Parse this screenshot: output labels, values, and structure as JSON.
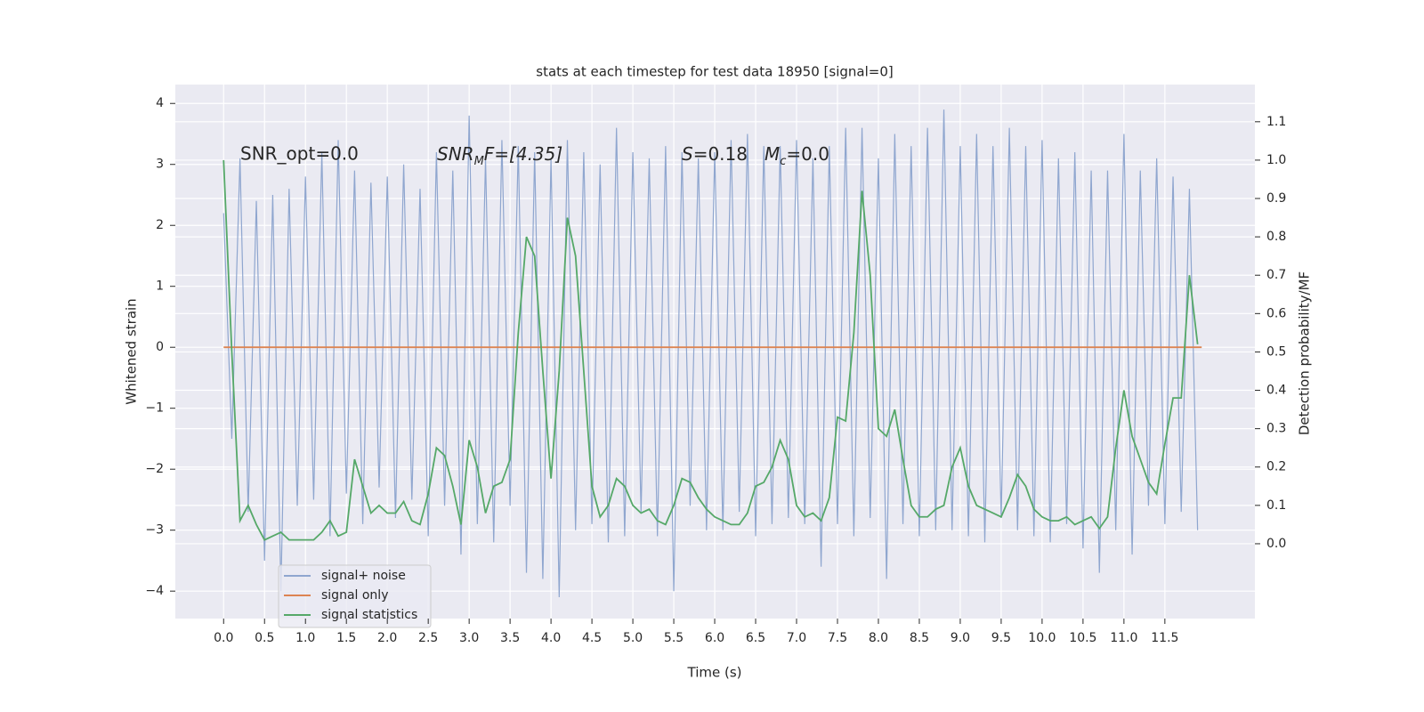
{
  "chart_data": {
    "type": "line",
    "title": "stats at each timestep for test data 18950 [signal=0]",
    "xlabel": "Time (s)",
    "ylabel": "Whitened strain",
    "y2label": "Detection probability/MF",
    "annotations": [
      [
        "SNR_opt=0.0"
      ],
      [
        "SNR",
        "M",
        "F=[4.35]"
      ],
      [
        "S",
        "=0.18"
      ],
      [
        "M",
        "c",
        "=0.0"
      ]
    ],
    "xlim": [
      -0.59,
      12.6
    ],
    "ylim": [
      -4.45,
      4.31
    ],
    "y2lim": [
      -0.195,
      1.197
    ],
    "xticks": [
      {
        "value": 0,
        "label": "0.0"
      },
      0.5,
      {
        "value": 1,
        "label": "1.0"
      },
      1.5,
      {
        "value": 2,
        "label": "2.0"
      },
      2.5,
      {
        "value": 3,
        "label": "3.0"
      },
      3.5,
      {
        "value": 4,
        "label": "4.0"
      },
      4.5,
      {
        "value": 5,
        "label": "5.0"
      },
      5.5,
      {
        "value": 6,
        "label": "6.0"
      },
      6.5,
      {
        "value": 7,
        "label": "7.0"
      },
      7.5,
      {
        "value": 8,
        "label": "8.0"
      },
      8.5,
      {
        "value": 9,
        "label": "9.0"
      },
      9.5,
      {
        "value": 10,
        "label": "10.0"
      },
      10.5,
      {
        "value": 11,
        "label": "11.0"
      },
      11.5
    ],
    "yticks": [
      {
        "value": -4,
        "label": "−4"
      },
      {
        "value": -3,
        "label": "−3"
      },
      {
        "value": -2,
        "label": "−2"
      },
      {
        "value": -1,
        "label": "−1"
      },
      0,
      1,
      2,
      3,
      4
    ],
    "y2ticks": [
      {
        "value": 0,
        "label": "0.0"
      },
      0.1,
      0.2,
      0.3,
      0.4,
      0.5,
      0.6,
      0.7,
      0.8,
      0.9,
      {
        "value": 1,
        "label": "1.0"
      },
      1.1
    ],
    "grid": true,
    "legend": "lower left",
    "series": [
      {
        "name": "signal+ noise",
        "color": "#8fa6cf",
        "x": [
          0,
          0.1,
          0.2,
          0.3,
          0.4,
          0.5,
          0.6,
          0.7,
          0.8,
          0.9,
          1,
          1.1,
          1.2,
          1.3,
          1.4,
          1.5,
          1.6,
          1.7,
          1.8,
          1.9,
          2,
          2.1,
          2.2,
          2.3,
          2.4,
          2.5,
          2.6,
          2.7,
          2.8,
          2.9,
          3,
          3.1,
          3.2,
          3.3,
          3.4,
          3.5,
          3.6,
          3.7,
          3.8,
          3.9,
          4,
          4.1,
          4.2,
          4.3,
          4.4,
          4.5,
          4.6,
          4.7,
          4.8,
          4.9,
          5,
          5.1,
          5.2,
          5.3,
          5.4,
          5.5,
          5.6,
          5.7,
          5.8,
          5.9,
          6,
          6.1,
          6.2,
          6.3,
          6.4,
          6.5,
          6.6,
          6.7,
          6.8,
          6.9,
          7,
          7.1,
          7.2,
          7.3,
          7.4,
          7.5,
          7.6,
          7.7,
          7.8,
          7.9,
          8,
          8.1,
          8.2,
          8.3,
          8.4,
          8.5,
          8.6,
          8.7,
          8.8,
          8.9,
          9,
          9.1,
          9.2,
          9.3,
          9.4,
          9.5,
          9.6,
          9.7,
          9.8,
          9.9,
          10,
          10.1,
          10.2,
          10.3,
          10.4,
          10.5,
          10.6,
          10.7,
          10.8,
          10.9,
          11,
          11.1,
          11.2,
          11.3,
          11.4,
          11.5,
          11.6,
          11.7,
          11.8,
          11.9
        ],
        "values": [
          2.2,
          -1.5,
          3.1,
          -2.7,
          2.4,
          -3.5,
          2.5,
          -4.0,
          2.6,
          -2.6,
          2.8,
          -2.5,
          3.2,
          -3.1,
          3.4,
          -2.4,
          2.9,
          -2.9,
          2.7,
          -2.3,
          2.8,
          -2.8,
          3.0,
          -2.5,
          2.6,
          -3.1,
          3.2,
          -2.6,
          2.9,
          -3.4,
          3.8,
          -2.9,
          3.1,
          -3.2,
          3.4,
          -2.6,
          3.3,
          -3.7,
          3.2,
          -3.8,
          3.1,
          -4.1,
          3.4,
          -3.0,
          3.2,
          -2.9,
          3.0,
          -3.2,
          3.6,
          -3.1,
          3.2,
          -2.7,
          3.1,
          -3.1,
          3.3,
          -4.0,
          3.2,
          -2.6,
          3.1,
          -3.0,
          3.2,
          -3.0,
          3.4,
          -2.7,
          3.5,
          -3.1,
          3.3,
          -2.9,
          3.3,
          -2.8,
          3.4,
          -2.9,
          3.1,
          -3.6,
          3.3,
          -2.9,
          3.6,
          -3.1,
          3.6,
          -2.8,
          3.1,
          -3.8,
          3.5,
          -2.9,
          3.3,
          -3.1,
          3.6,
          -3.0,
          3.9,
          -3.0,
          3.3,
          -3.1,
          3.5,
          -3.2,
          3.3,
          -2.8,
          3.6,
          -3.0,
          3.3,
          -3.1,
          3.4,
          -3.2,
          3.1,
          -2.9,
          3.2,
          -3.3,
          2.9,
          -3.7,
          2.9,
          -3.0,
          3.5,
          -3.4,
          2.9,
          -2.6,
          3.1,
          -2.9,
          2.8,
          -2.7,
          2.6,
          -3.0
        ]
      },
      {
        "name": "signal only",
        "color": "#dd8452",
        "x": [
          0,
          11.95
        ],
        "values": [
          0,
          0
        ]
      },
      {
        "name": "signal statistics",
        "color": "#55a868",
        "axis": "y2",
        "x": [
          0,
          0.1,
          0.2,
          0.3,
          0.4,
          0.5,
          0.6,
          0.7,
          0.8,
          0.9,
          1,
          1.1,
          1.2,
          1.3,
          1.4,
          1.5,
          1.6,
          1.7,
          1.8,
          1.9,
          2,
          2.1,
          2.2,
          2.3,
          2.4,
          2.5,
          2.6,
          2.7,
          2.8,
          2.9,
          3,
          3.1,
          3.2,
          3.3,
          3.4,
          3.5,
          3.6,
          3.7,
          3.8,
          3.9,
          4,
          4.1,
          4.2,
          4.3,
          4.4,
          4.5,
          4.6,
          4.7,
          4.8,
          4.9,
          5,
          5.1,
          5.2,
          5.3,
          5.4,
          5.5,
          5.6,
          5.7,
          5.8,
          5.9,
          6,
          6.1,
          6.2,
          6.3,
          6.4,
          6.5,
          6.6,
          6.7,
          6.8,
          6.9,
          7,
          7.1,
          7.2,
          7.3,
          7.4,
          7.5,
          7.6,
          7.7,
          7.8,
          7.9,
          8,
          8.1,
          8.2,
          8.3,
          8.4,
          8.5,
          8.6,
          8.7,
          8.8,
          8.9,
          9,
          9.1,
          9.2,
          9.3,
          9.4,
          9.5,
          9.6,
          9.7,
          9.8,
          9.9,
          10,
          10.1,
          10.2,
          10.3,
          10.4,
          10.5,
          10.6,
          10.7,
          10.8,
          10.9,
          11,
          11.1,
          11.2,
          11.3,
          11.4,
          11.5,
          11.6,
          11.7,
          11.8,
          11.9
        ],
        "values": [
          1.0,
          0.5,
          0.06,
          0.1,
          0.05,
          0.01,
          0.02,
          0.03,
          0.01,
          0.01,
          0.01,
          0.01,
          0.03,
          0.06,
          0.02,
          0.03,
          0.22,
          0.15,
          0.08,
          0.1,
          0.08,
          0.08,
          0.11,
          0.06,
          0.05,
          0.13,
          0.25,
          0.23,
          0.15,
          0.05,
          0.27,
          0.2,
          0.08,
          0.15,
          0.16,
          0.22,
          0.55,
          0.8,
          0.75,
          0.45,
          0.17,
          0.45,
          0.85,
          0.75,
          0.45,
          0.15,
          0.07,
          0.1,
          0.17,
          0.15,
          0.1,
          0.08,
          0.09,
          0.06,
          0.05,
          0.1,
          0.17,
          0.16,
          0.12,
          0.09,
          0.07,
          0.06,
          0.05,
          0.05,
          0.08,
          0.15,
          0.16,
          0.2,
          0.27,
          0.22,
          0.1,
          0.07,
          0.08,
          0.06,
          0.12,
          0.33,
          0.32,
          0.55,
          0.92,
          0.7,
          0.3,
          0.28,
          0.35,
          0.22,
          0.1,
          0.07,
          0.07,
          0.09,
          0.1,
          0.2,
          0.25,
          0.15,
          0.1,
          0.09,
          0.08,
          0.07,
          0.12,
          0.18,
          0.15,
          0.09,
          0.07,
          0.06,
          0.06,
          0.07,
          0.05,
          0.06,
          0.07,
          0.04,
          0.07,
          0.25,
          0.4,
          0.28,
          0.22,
          0.16,
          0.13,
          0.26,
          0.38,
          0.38,
          0.7,
          0.52
        ]
      }
    ]
  }
}
